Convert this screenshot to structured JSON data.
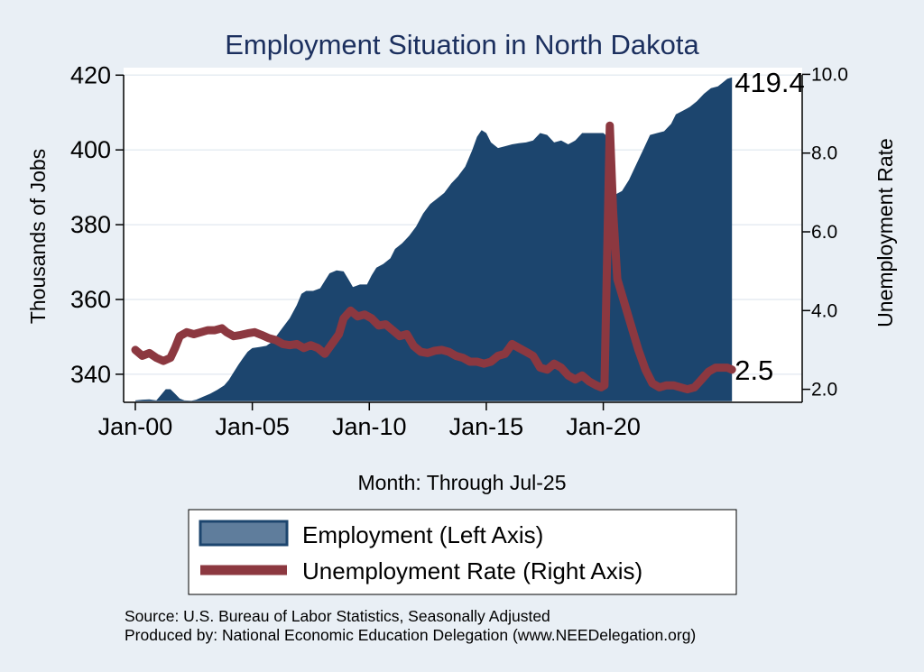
{
  "chart_data": {
    "type": "area+line",
    "title": "Employment Situation in North Dakota",
    "xlabel": "Month: Through Jul-25",
    "y_left_label": "Thousands of Jobs",
    "y_right_label": "Unemployment Rate",
    "x_ticks": [
      {
        "t": 2000,
        "label": "Jan-00"
      },
      {
        "t": 2005,
        "label": "Jan-05"
      },
      {
        "t": 2010,
        "label": "Jan-10"
      },
      {
        "t": 2015,
        "label": "Jan-15"
      },
      {
        "t": 2020,
        "label": "Jan-20"
      }
    ],
    "x_range": [
      1999.5,
      2028.5
    ],
    "y_left_range": [
      332.5,
      422
    ],
    "y_left_ticks": [
      340,
      360,
      380,
      400,
      420
    ],
    "y_right_range": [
      1.67,
      10.17
    ],
    "y_right_ticks": [
      "2.0",
      "4.0",
      "6.0",
      "8.0",
      "10.0"
    ],
    "grid": true,
    "legend_position": "bottom",
    "series": [
      {
        "name": "Employment (Left Axis)",
        "kind": "area",
        "color": "#1c456e",
        "points": [
          [
            2000.0,
            333.0
          ],
          [
            2000.3,
            333.2
          ],
          [
            2000.6,
            333.3
          ],
          [
            2000.9,
            333.0
          ],
          [
            2001.1,
            334.5
          ],
          [
            2001.3,
            336.0
          ],
          [
            2001.5,
            336.0
          ],
          [
            2001.7,
            334.8
          ],
          [
            2001.9,
            333.5
          ],
          [
            2002.1,
            333.0
          ],
          [
            2002.4,
            332.9
          ],
          [
            2002.6,
            333.2
          ],
          [
            2002.9,
            334.0
          ],
          [
            2003.2,
            334.8
          ],
          [
            2003.5,
            335.8
          ],
          [
            2003.8,
            337.0
          ],
          [
            2004.0,
            338.5
          ],
          [
            2004.2,
            340.5
          ],
          [
            2004.4,
            342.5
          ],
          [
            2004.6,
            344.3
          ],
          [
            2004.8,
            346.0
          ],
          [
            2005.0,
            347.0
          ],
          [
            2005.3,
            347.3
          ],
          [
            2005.6,
            347.6
          ],
          [
            2005.8,
            348.5
          ],
          [
            2006.0,
            350.0
          ],
          [
            2006.3,
            352.5
          ],
          [
            2006.6,
            355.0
          ],
          [
            2006.9,
            358.5
          ],
          [
            2007.1,
            361.5
          ],
          [
            2007.3,
            362.3
          ],
          [
            2007.6,
            362.3
          ],
          [
            2007.9,
            363.0
          ],
          [
            2008.1,
            365.0
          ],
          [
            2008.3,
            367.0
          ],
          [
            2008.6,
            367.8
          ],
          [
            2008.9,
            367.5
          ],
          [
            2009.1,
            365.5
          ],
          [
            2009.3,
            363.3
          ],
          [
            2009.6,
            364.0
          ],
          [
            2009.9,
            364.0
          ],
          [
            2010.1,
            366.5
          ],
          [
            2010.3,
            368.5
          ],
          [
            2010.6,
            369.5
          ],
          [
            2010.9,
            371.0
          ],
          [
            2011.1,
            373.5
          ],
          [
            2011.4,
            375.0
          ],
          [
            2011.7,
            377.0
          ],
          [
            2012.0,
            379.5
          ],
          [
            2012.3,
            383.0
          ],
          [
            2012.6,
            385.5
          ],
          [
            2012.9,
            387.0
          ],
          [
            2013.2,
            388.5
          ],
          [
            2013.5,
            391.0
          ],
          [
            2013.8,
            393.0
          ],
          [
            2014.1,
            395.5
          ],
          [
            2014.4,
            400.0
          ],
          [
            2014.6,
            403.5
          ],
          [
            2014.8,
            405.3
          ],
          [
            2015.0,
            404.5
          ],
          [
            2015.2,
            402.0
          ],
          [
            2015.5,
            400.5
          ],
          [
            2015.8,
            401.0
          ],
          [
            2016.1,
            401.5
          ],
          [
            2016.4,
            401.8
          ],
          [
            2016.7,
            402.0
          ],
          [
            2017.0,
            402.5
          ],
          [
            2017.3,
            404.5
          ],
          [
            2017.6,
            404.0
          ],
          [
            2017.9,
            402.0
          ],
          [
            2018.2,
            402.5
          ],
          [
            2018.5,
            401.5
          ],
          [
            2018.8,
            402.5
          ],
          [
            2019.1,
            404.5
          ],
          [
            2019.4,
            404.5
          ],
          [
            2019.7,
            404.5
          ],
          [
            2020.0,
            404.5
          ],
          [
            2020.1,
            404.0
          ],
          [
            2020.28,
            387.5
          ],
          [
            2020.5,
            388.0
          ],
          [
            2020.8,
            389.0
          ],
          [
            2021.1,
            392.0
          ],
          [
            2021.4,
            396.0
          ],
          [
            2021.7,
            400.0
          ],
          [
            2022.0,
            404.0
          ],
          [
            2022.3,
            404.5
          ],
          [
            2022.6,
            405.0
          ],
          [
            2022.9,
            407.0
          ],
          [
            2023.1,
            409.5
          ],
          [
            2023.4,
            410.5
          ],
          [
            2023.7,
            411.5
          ],
          [
            2024.0,
            413.0
          ],
          [
            2024.3,
            415.0
          ],
          [
            2024.6,
            416.5
          ],
          [
            2024.9,
            417.0
          ],
          [
            2025.1,
            418.0
          ],
          [
            2025.3,
            419.0
          ],
          [
            2025.5,
            419.4
          ]
        ],
        "end_label": "419.4"
      },
      {
        "name": "Unemployment Rate (Right Axis)",
        "kind": "line",
        "color": "#8c3840",
        "points": [
          [
            2000.0,
            3.0
          ],
          [
            2000.3,
            2.85
          ],
          [
            2000.6,
            2.92
          ],
          [
            2000.9,
            2.8
          ],
          [
            2001.2,
            2.72
          ],
          [
            2001.5,
            2.8
          ],
          [
            2001.7,
            3.05
          ],
          [
            2001.9,
            3.35
          ],
          [
            2002.2,
            3.45
          ],
          [
            2002.5,
            3.4
          ],
          [
            2002.8,
            3.45
          ],
          [
            2003.1,
            3.5
          ],
          [
            2003.4,
            3.5
          ],
          [
            2003.7,
            3.55
          ],
          [
            2003.9,
            3.45
          ],
          [
            2004.2,
            3.35
          ],
          [
            2004.5,
            3.38
          ],
          [
            2004.8,
            3.42
          ],
          [
            2005.1,
            3.45
          ],
          [
            2005.4,
            3.38
          ],
          [
            2005.7,
            3.3
          ],
          [
            2006.0,
            3.25
          ],
          [
            2006.3,
            3.15
          ],
          [
            2006.6,
            3.12
          ],
          [
            2006.9,
            3.15
          ],
          [
            2007.2,
            3.05
          ],
          [
            2007.5,
            3.12
          ],
          [
            2007.8,
            3.05
          ],
          [
            2008.1,
            2.9
          ],
          [
            2008.4,
            3.15
          ],
          [
            2008.7,
            3.4
          ],
          [
            2008.9,
            3.8
          ],
          [
            2009.2,
            4.0
          ],
          [
            2009.5,
            3.85
          ],
          [
            2009.8,
            3.9
          ],
          [
            2010.1,
            3.8
          ],
          [
            2010.4,
            3.62
          ],
          [
            2010.7,
            3.65
          ],
          [
            2011.0,
            3.5
          ],
          [
            2011.3,
            3.35
          ],
          [
            2011.6,
            3.4
          ],
          [
            2011.9,
            3.1
          ],
          [
            2012.2,
            2.95
          ],
          [
            2012.5,
            2.92
          ],
          [
            2012.8,
            2.98
          ],
          [
            2013.1,
            3.0
          ],
          [
            2013.4,
            2.95
          ],
          [
            2013.7,
            2.85
          ],
          [
            2014.0,
            2.8
          ],
          [
            2014.3,
            2.7
          ],
          [
            2014.6,
            2.7
          ],
          [
            2014.9,
            2.65
          ],
          [
            2015.2,
            2.7
          ],
          [
            2015.5,
            2.85
          ],
          [
            2015.8,
            2.9
          ],
          [
            2016.1,
            3.15
          ],
          [
            2016.4,
            3.05
          ],
          [
            2016.7,
            2.95
          ],
          [
            2017.0,
            2.85
          ],
          [
            2017.3,
            2.55
          ],
          [
            2017.6,
            2.5
          ],
          [
            2017.9,
            2.65
          ],
          [
            2018.2,
            2.55
          ],
          [
            2018.5,
            2.35
          ],
          [
            2018.8,
            2.25
          ],
          [
            2019.1,
            2.35
          ],
          [
            2019.4,
            2.2
          ],
          [
            2019.7,
            2.1
          ],
          [
            2019.9,
            2.05
          ],
          [
            2020.05,
            2.1
          ],
          [
            2020.15,
            5.0
          ],
          [
            2020.28,
            8.7
          ],
          [
            2020.42,
            6.5
          ],
          [
            2020.6,
            4.8
          ],
          [
            2020.9,
            4.2
          ],
          [
            2021.2,
            3.6
          ],
          [
            2021.5,
            3.0
          ],
          [
            2021.8,
            2.5
          ],
          [
            2022.1,
            2.15
          ],
          [
            2022.4,
            2.05
          ],
          [
            2022.7,
            2.1
          ],
          [
            2023.0,
            2.1
          ],
          [
            2023.3,
            2.05
          ],
          [
            2023.6,
            2.0
          ],
          [
            2023.9,
            2.05
          ],
          [
            2024.2,
            2.25
          ],
          [
            2024.5,
            2.45
          ],
          [
            2024.8,
            2.55
          ],
          [
            2025.1,
            2.55
          ],
          [
            2025.3,
            2.55
          ],
          [
            2025.5,
            2.5
          ]
        ],
        "end_label": "2.5"
      }
    ],
    "notes": [
      "Source: U.S. Bureau of Labor Statistics, Seasonally Adjusted",
      "Produced by: National Economic Education Delegation (www.NEEDelegation.org)"
    ]
  }
}
